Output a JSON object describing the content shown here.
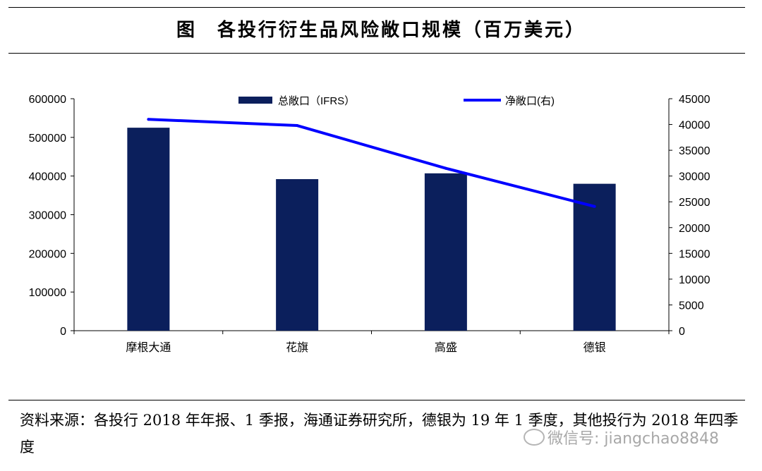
{
  "title": "图　各投行衍生品风险敞口规模（百万美元）",
  "source": "资料来源：各投行 2018 年年报、1 季报，海通证券研究所，德银为 19 年 1 季度，其他投行为 2018 年四季度",
  "watermark": "微信号: jiangchao8848",
  "chart_data": {
    "type": "bar+line",
    "categories": [
      "摩根大通",
      "花旗",
      "高盛",
      "德银"
    ],
    "series": [
      {
        "name": "总敞口（IFRS）",
        "type": "bar",
        "axis": "left",
        "color": "#0b1f5c",
        "values": [
          525000,
          392000,
          407000,
          380000
        ]
      },
      {
        "name": "净敞口(右)",
        "type": "line",
        "axis": "right",
        "color": "#0000ff",
        "values": [
          41000,
          39800,
          31500,
          24100
        ]
      }
    ],
    "ylim_left": [
      0,
      600000
    ],
    "yticks_left": [
      "0",
      "100000",
      "200000",
      "300000",
      "400000",
      "500000",
      "600000"
    ],
    "ylim_right": [
      0,
      45000
    ],
    "yticks_right": [
      "0",
      "5000",
      "10000",
      "15000",
      "20000",
      "25000",
      "30000",
      "35000",
      "40000",
      "45000"
    ],
    "legend_position": "top",
    "grid": false
  }
}
